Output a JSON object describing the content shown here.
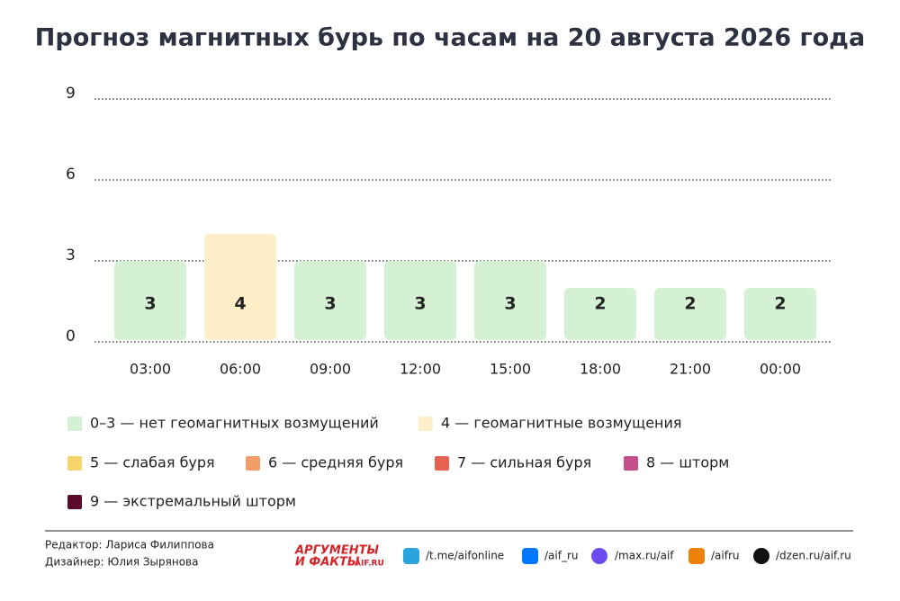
{
  "chart_data": {
    "type": "bar",
    "title": "Прогноз магнитных бурь по часам на 20 августа 2026 года",
    "categories": [
      "03:00",
      "06:00",
      "09:00",
      "12:00",
      "15:00",
      "18:00",
      "21:00",
      "00:00"
    ],
    "values": [
      3,
      4,
      3,
      3,
      3,
      2,
      2,
      2
    ],
    "colors": [
      "#d4f1d4",
      "#fdf0c9",
      "#d4f1d4",
      "#d4f1d4",
      "#d4f1d4",
      "#d4f1d4",
      "#d4f1d4",
      "#d4f1d4"
    ],
    "ylim": [
      0,
      9
    ],
    "yticks": [
      0,
      3,
      6,
      9
    ],
    "grid": true,
    "legend": [
      {
        "label": "0–3 — нет геомагнитных возмущений",
        "color": "#d4f1d4"
      },
      {
        "label": "4 — геомагнитные возмущения",
        "color": "#fdf0c9"
      },
      {
        "label": "5 — слабая буря",
        "color": "#f7d46c"
      },
      {
        "label": "6 — средняя буря",
        "color": "#f49c66"
      },
      {
        "label": "7 — сильная буря",
        "color": "#e8604f"
      },
      {
        "label": "8 — шторм",
        "color": "#c2508b"
      },
      {
        "label": "9 — экстремальный шторм",
        "color": "#5c0a2c"
      }
    ]
  },
  "footer": {
    "editor": "Редактор: Лариса Филиппова",
    "designer": "Дизайнер: Юлия Зырянова",
    "logo": [
      "АРГУМЕНТЫ",
      "И ФАКТЫ",
      "AIF.RU"
    ],
    "links": [
      "/t.me/aifonline",
      "/aif_ru",
      "/max.ru/aif",
      "/aifru",
      "/dzen.ru/aif.ru"
    ]
  }
}
